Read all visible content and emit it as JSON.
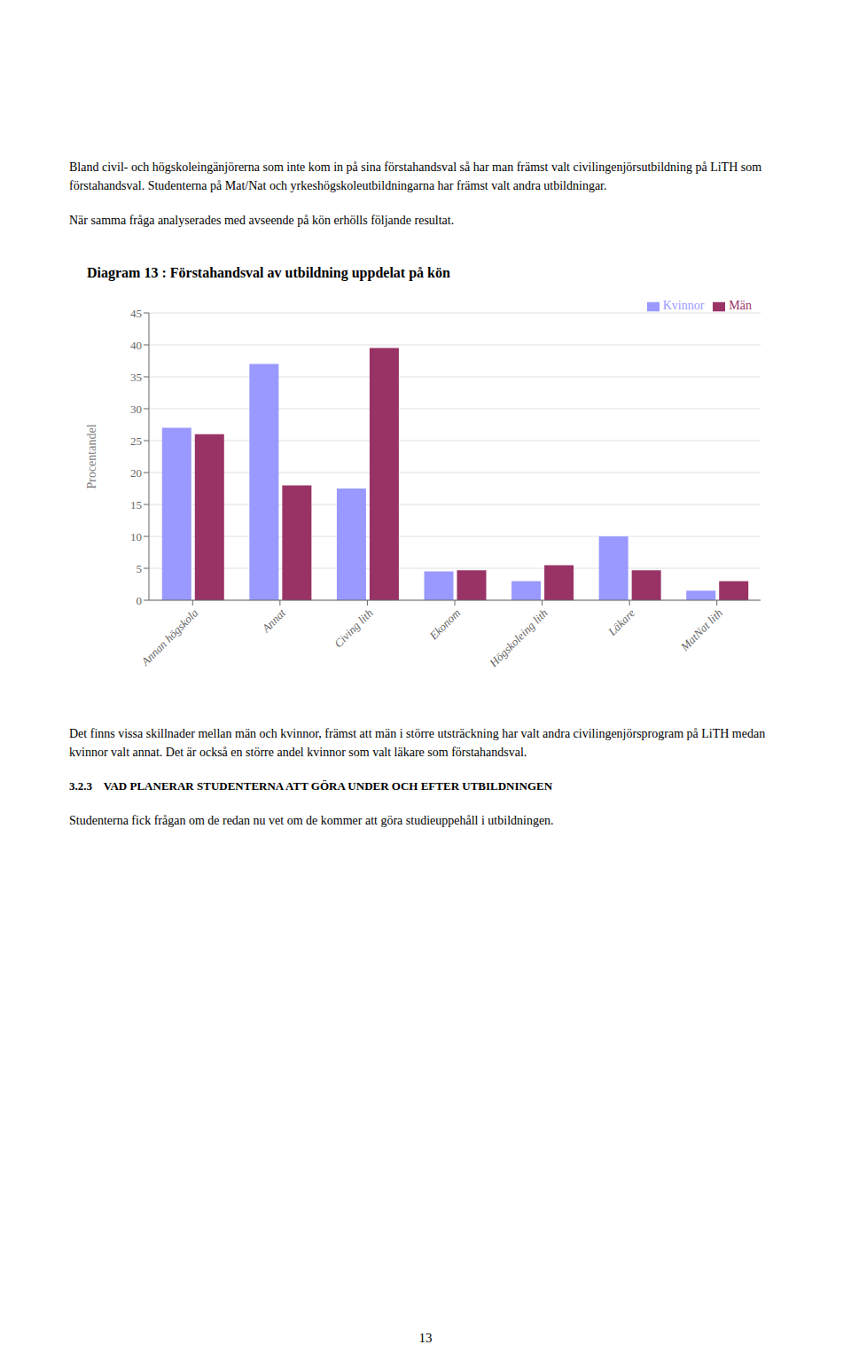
{
  "chart_data": {
    "type": "bar",
    "title": "Diagram 13 : Förstahandsval av utbildning uppdelat på kön",
    "ylabel": "Procentandel",
    "categories": [
      "Annan högskola",
      "Annat",
      "Civing lith",
      "Ekonom",
      "Högskoleing lith",
      "Läkare",
      "MatNat lith"
    ],
    "series": [
      {
        "name": "Kvinnor",
        "color": "#9999ff",
        "values": [
          27,
          37,
          17.5,
          4.5,
          3,
          10,
          1.5
        ]
      },
      {
        "name": "Män",
        "color": "#993366",
        "values": [
          26,
          18,
          39.5,
          4.7,
          5.5,
          4.7,
          3
        ]
      }
    ],
    "ylim": [
      0,
      45
    ],
    "yticks": [
      0,
      5,
      10,
      15,
      20,
      25,
      30,
      35,
      40,
      45
    ],
    "grid": true,
    "legend": "upper right",
    "annotations": [
      "Bland civil- och högskoleingänjörerna som inte kom in på sina förstahandsval så har man främst valt civilingenjörsutbildning på LiTH som förstahandsval. Studenterna på Mat/Nat och yrkeshögskoleutbildningarna har främst valt andra utbildningar.",
      "När samma fråga analyserades med avseende på kön erhölls följande resultat.",
      "Det finns vissa skillnader mellan män och kvinnor, främst att män i större utsträckning har valt andra civilingenjörsprogram på LiTH medan kvinnor valt annat. Det är också en större andel kvinnor som valt läkare som förstahandsval.",
      "3.2.3    VAD PLANERAR STUDENTERNA ATT GÖRA UNDER OCH EFTER UTBILDNINGEN",
      "Studenterna fick frågan om de redan nu vet om de kommer att göra studieuppehåll i utbildningen.",
      "13"
    ]
  }
}
